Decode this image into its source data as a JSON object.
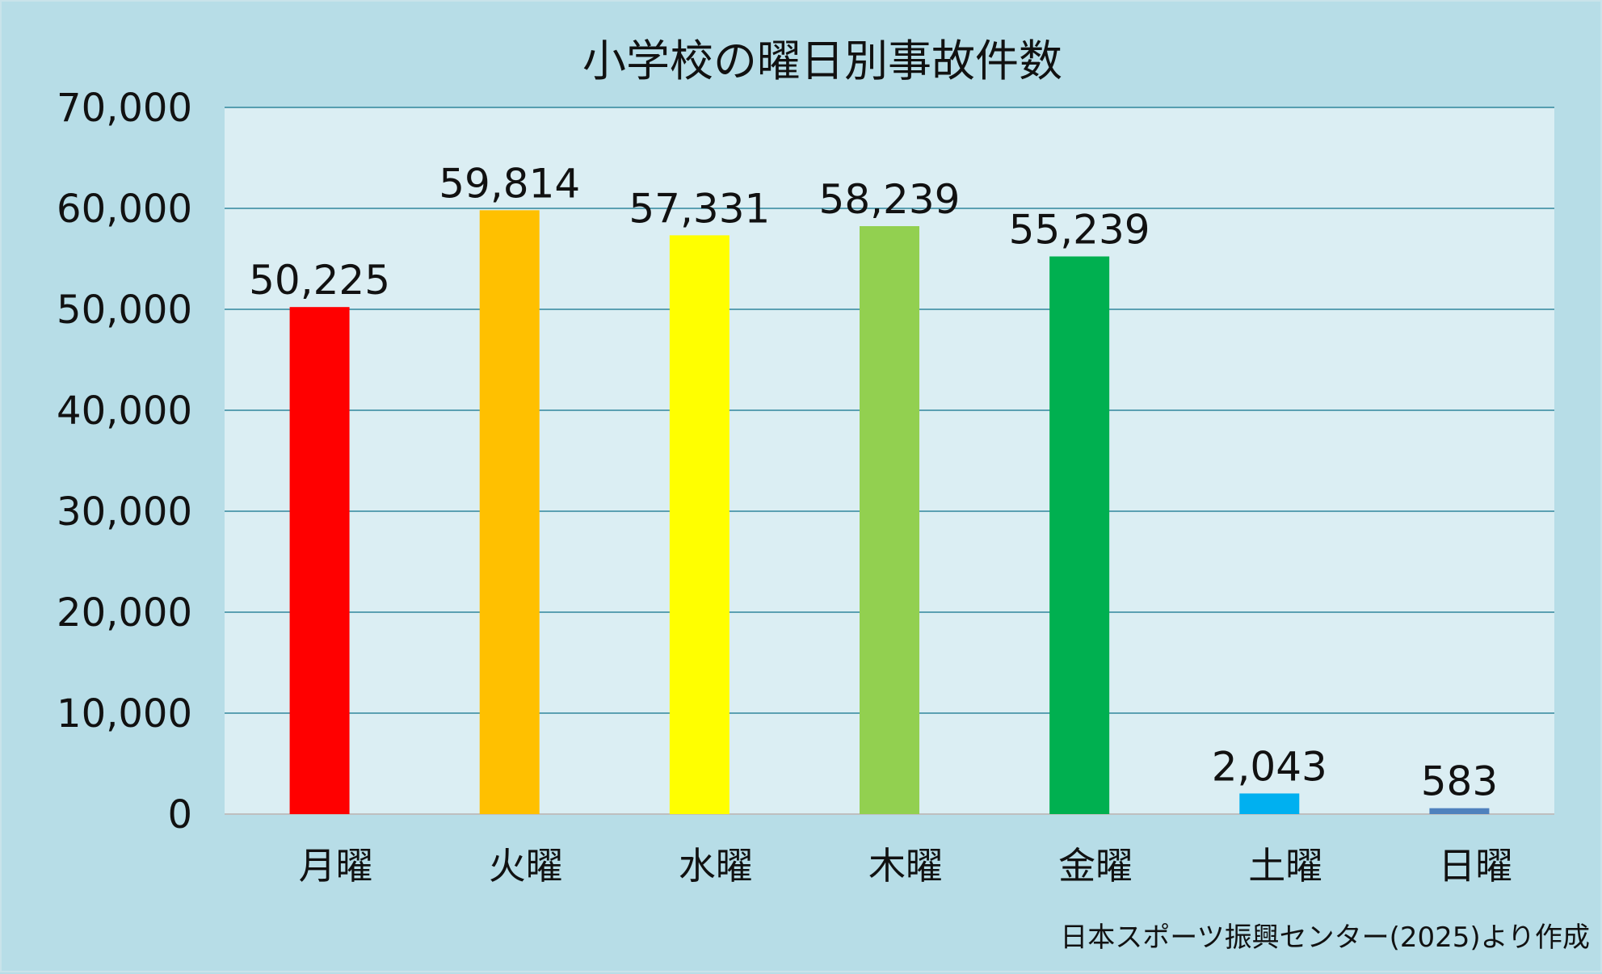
{
  "chart_data": {
    "type": "bar",
    "title": "小学校の曜日別事故件数",
    "categories": [
      "月曜",
      "火曜",
      "水曜",
      "木曜",
      "金曜",
      "土曜",
      "日曜"
    ],
    "values": [
      50225,
      59814,
      57331,
      58239,
      55239,
      2043,
      583
    ],
    "value_labels": [
      "50,225",
      "59,814",
      "57,331",
      "58,239",
      "55,239",
      "2,043",
      "583"
    ],
    "bar_colors": [
      "#ff0000",
      "#ffc000",
      "#ffff00",
      "#92d050",
      "#00b050",
      "#00b0f0",
      "#4f81bd"
    ],
    "ylim": [
      0,
      70000
    ],
    "yticks": [
      0,
      10000,
      20000,
      30000,
      40000,
      50000,
      60000,
      70000
    ],
    "ytick_labels": [
      "0",
      "10,000",
      "20,000",
      "30,000",
      "40,000",
      "50,000",
      "60,000",
      "70,000"
    ],
    "grid": true,
    "xlabel": "",
    "ylabel": "",
    "source_note": "日本スポーツ振興センター(2025)より作成"
  },
  "colors": {
    "background": "#b7dde7",
    "plot_area": "#dbeef3",
    "gridline": "#31859c"
  }
}
